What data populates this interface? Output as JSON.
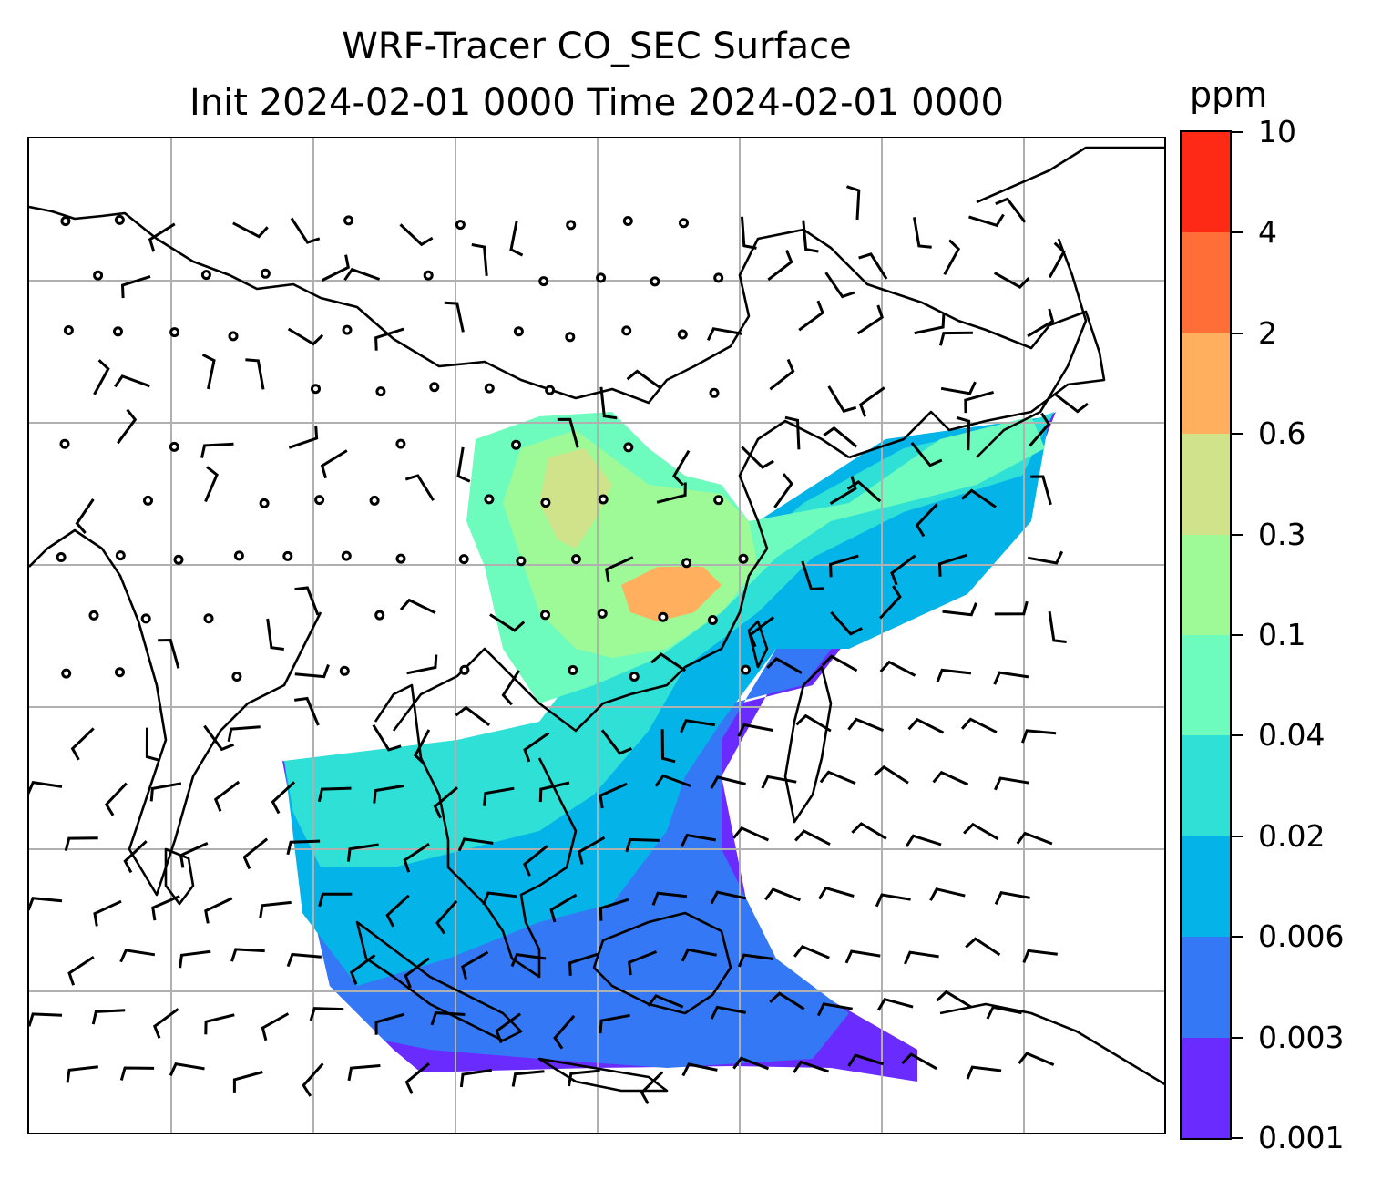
{
  "title": {
    "line1": "WRF-Tracer CO_SEC Surface",
    "line2": "Init 2024-02-01 0000 Time 2024-02-01 0000"
  },
  "colorbar": {
    "unit": "ppm",
    "levels": [
      "0.001",
      "0.003",
      "0.006",
      "0.02",
      "0.04",
      "0.1",
      "0.3",
      "0.6",
      "2",
      "4",
      "10"
    ],
    "colors": [
      "#6a2bff",
      "#3478f6",
      "#04b4e9",
      "#2ee0d6",
      "#6dfcbd",
      "#9efa96",
      "#d0e28a",
      "#ffaf5d",
      "#ff6e36",
      "#ff2a16"
    ]
  },
  "map": {
    "field": "CO_SEC",
    "level": "Surface",
    "gridlines": true,
    "coastlines": true,
    "wind_barbs": true,
    "shading": [
      {
        "region": "central-south-china",
        "level_index": 6
      },
      {
        "region": "sichuan-basin",
        "level_index": 7
      },
      {
        "region": "east-china-sea",
        "level_index": 3
      },
      {
        "region": "indochina",
        "level_index": 3
      },
      {
        "region": "south-china-sea",
        "level_index": 2
      },
      {
        "region": "java-sea",
        "level_index": 1
      }
    ]
  }
}
